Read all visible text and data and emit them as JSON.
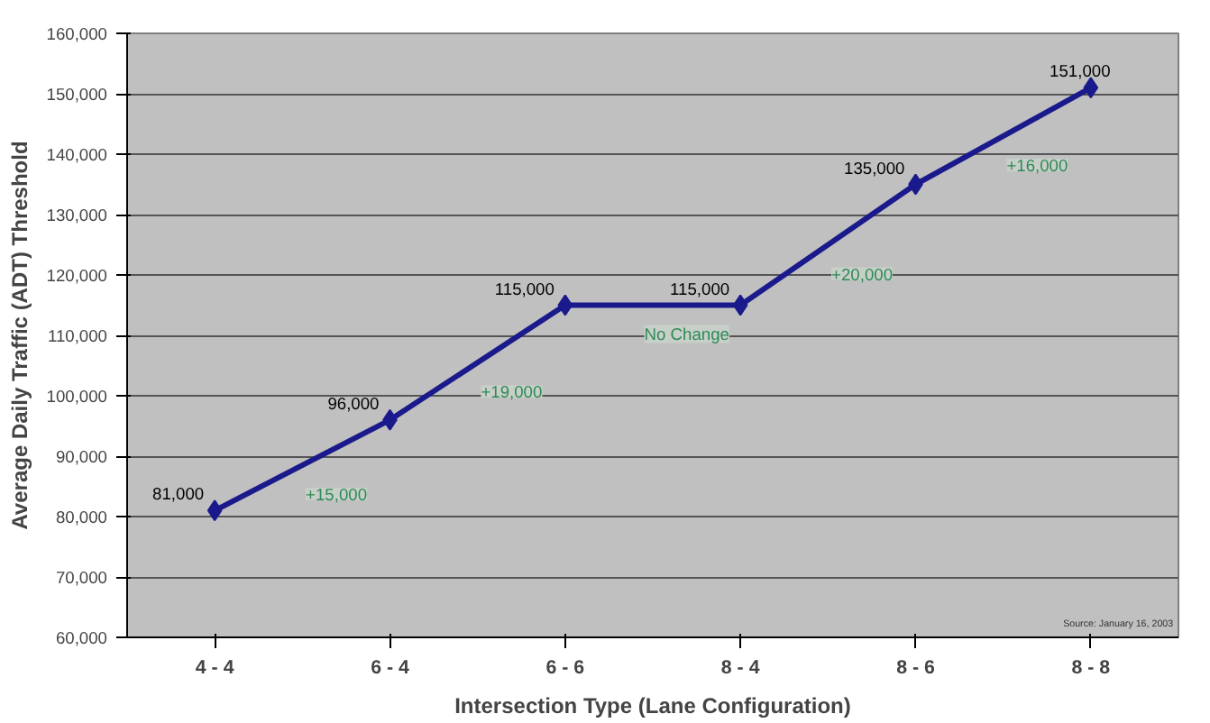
{
  "chart_data": {
    "type": "line",
    "xlabel": "Intersection Type (Lane Configuration)",
    "ylabel": "Average Daily Traffic (ADT) Threshold",
    "categories": [
      "4 - 4",
      "6 - 4",
      "6 - 6",
      "8 - 4",
      "8 - 6",
      "8 - 8"
    ],
    "series": [
      {
        "color": "#1a1a8c",
        "values": [
          81000,
          96000,
          115000,
          115000,
          135000,
          151000
        ]
      }
    ],
    "value_labels": [
      "81,000",
      "96,000",
      "115,000",
      "115,000",
      "135,000",
      "151,000"
    ],
    "marker": "diamond",
    "line_style": "solid",
    "grid": "y",
    "ylim": [
      60000,
      160000
    ],
    "yticks": [
      {
        "value": 60000,
        "label": "60,000"
      },
      {
        "value": 70000,
        "label": "70,000"
      },
      {
        "value": 80000,
        "label": "80,000"
      },
      {
        "value": 90000,
        "label": "90,000"
      },
      {
        "value": 100000,
        "label": "100,000"
      },
      {
        "value": 110000,
        "label": "110,000"
      },
      {
        "value": 120000,
        "label": "120,000"
      },
      {
        "value": 130000,
        "label": "130,000"
      },
      {
        "value": 140000,
        "label": "140,000"
      },
      {
        "value": 150000,
        "label": "150,000"
      },
      {
        "value": 160000,
        "label": "160,000"
      }
    ],
    "annotations": [
      "+15,000",
      "+19,000",
      "No Change",
      "+20,000",
      "+16,000",
      "Source: January 16, 2003"
    ]
  }
}
